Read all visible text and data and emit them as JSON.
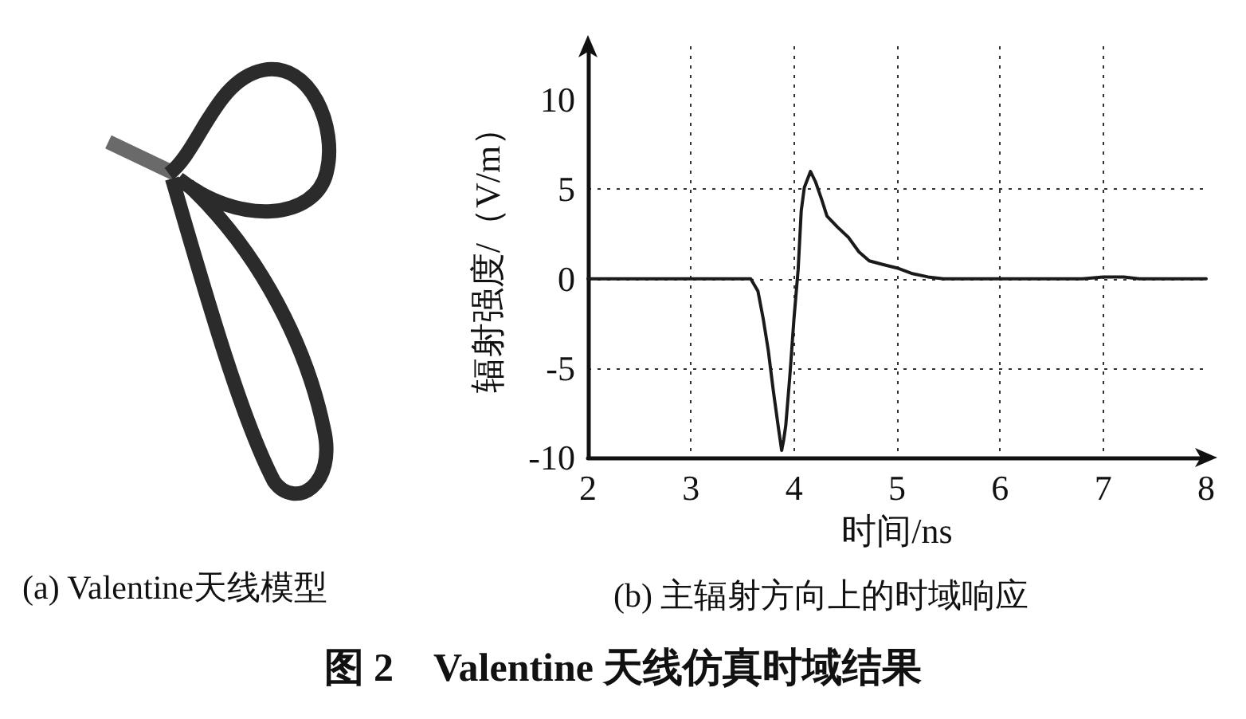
{
  "chart_data": {
    "type": "line",
    "title": "图 2　Valentine 天线仿真时域结果",
    "subtitle": "(b) 主辐射方向上的时域响应",
    "annotations": [
      "(a) Valentine天线模型"
    ],
    "xlabel": "时间/ns",
    "ylabel": "辐射强度/（V/m）",
    "x": [
      2,
      3.58,
      3.65,
      3.7,
      3.75,
      3.8,
      3.85,
      3.88,
      3.9,
      3.92,
      3.96,
      4.0,
      4.04,
      4.07,
      4.1,
      4.16,
      4.21,
      4.27,
      4.32,
      4.42,
      4.53,
      4.63,
      4.73,
      4.86,
      5.0,
      5.14,
      5.3,
      5.45,
      6.8,
      7.0,
      7.2,
      7.35,
      8
    ],
    "values": [
      0,
      0,
      -0.7,
      -2.2,
      -4.0,
      -6.3,
      -8.4,
      -9.6,
      -9.0,
      -8.2,
      -5.4,
      -2.2,
      0.5,
      3.8,
      5.1,
      6.0,
      5.4,
      4.4,
      3.5,
      2.9,
      2.3,
      1.5,
      1.0,
      0.8,
      0.6,
      0.3,
      0.1,
      0,
      0,
      0.1,
      0.1,
      0,
      0
    ],
    "color": "#1a1a1a",
    "xlim": [
      2,
      8
    ],
    "xticks": [
      2,
      3,
      4,
      5,
      6,
      7,
      8
    ],
    "ylim": [
      -10,
      13
    ],
    "yticks": [
      -10,
      -5,
      0,
      5,
      10
    ],
    "grid": true,
    "marker": "none",
    "line_style": "solid"
  }
}
